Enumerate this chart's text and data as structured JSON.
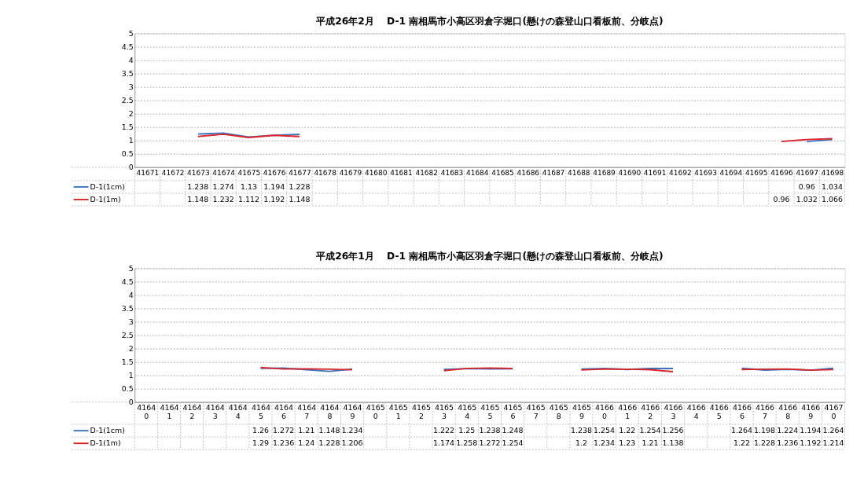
{
  "chart_data": [
    {
      "type": "line",
      "title": "平成26年2月　 D-1 南相馬市小高区羽倉字堀口(懸けの森登山口看板前、分岐点)",
      "categories": [
        "41671",
        "41672",
        "41673",
        "41674",
        "41675",
        "41676",
        "41677",
        "41678",
        "41679",
        "41680",
        "41681",
        "41682",
        "41683",
        "41684",
        "41685",
        "41686",
        "41687",
        "41688",
        "41689",
        "41690",
        "41691",
        "41692",
        "41693",
        "41694",
        "41695",
        "41696",
        "41697",
        "41698"
      ],
      "series": [
        {
          "name": "D-1(1cm)",
          "color": "#3b72c0",
          "values": [
            null,
            null,
            1.238,
            1.274,
            1.13,
            1.194,
            1.228,
            null,
            null,
            null,
            null,
            null,
            null,
            null,
            null,
            null,
            null,
            null,
            null,
            null,
            null,
            null,
            null,
            null,
            null,
            null,
            0.96,
            1.034
          ]
        },
        {
          "name": "D-1(1m)",
          "color": "#d9262a",
          "values": [
            null,
            null,
            1.148,
            1.232,
            1.112,
            1.192,
            1.148,
            null,
            null,
            null,
            null,
            null,
            null,
            null,
            null,
            null,
            null,
            null,
            null,
            null,
            null,
            null,
            null,
            null,
            null,
            0.96,
            1.032,
            1.066
          ]
        }
      ],
      "ylim": [
        0,
        5
      ],
      "yticks": [
        0,
        0.5,
        1,
        1.5,
        2,
        2.5,
        3,
        3.5,
        4,
        4.5,
        5
      ],
      "grid": "y",
      "legend": "bottom",
      "data_labels": true,
      "marker": "none",
      "line_style": "solid"
    },
    {
      "type": "line",
      "title": "平成26年1月　 D-1 南相馬市小高区羽倉字堀口(懸けの森登山口看板前、分岐点)",
      "categories": [
        "41640",
        "41641",
        "41642",
        "41643",
        "41644",
        "41645",
        "41646",
        "41647",
        "41648",
        "41649",
        "41650",
        "41651",
        "41652",
        "41653",
        "41654",
        "41655",
        "41656",
        "41657",
        "41658",
        "41659",
        "41660",
        "41661",
        "41662",
        "41663",
        "41664",
        "41665",
        "41666",
        "41667",
        "41668",
        "41669",
        "41670"
      ],
      "series": [
        {
          "name": "D-1(1cm)",
          "color": "#3b72c0",
          "values": [
            null,
            null,
            null,
            null,
            null,
            1.26,
            1.272,
            1.21,
            1.148,
            1.234,
            null,
            null,
            null,
            1.222,
            1.25,
            1.238,
            1.248,
            null,
            null,
            1.238,
            1.254,
            1.22,
            1.254,
            1.256,
            null,
            null,
            1.264,
            1.198,
            1.224,
            1.194,
            1.264
          ]
        },
        {
          "name": "D-1(1m)",
          "color": "#d9262a",
          "values": [
            null,
            null,
            null,
            null,
            null,
            1.29,
            1.236,
            1.24,
            1.228,
            1.206,
            null,
            null,
            null,
            1.174,
            1.258,
            1.272,
            1.254,
            null,
            null,
            1.2,
            1.234,
            1.23,
            1.21,
            1.138,
            null,
            null,
            1.22,
            1.228,
            1.236,
            1.192,
            1.214
          ]
        }
      ],
      "ylim": [
        0,
        5
      ],
      "yticks": [
        0,
        0.5,
        1,
        1.5,
        2,
        2.5,
        3,
        3.5,
        4,
        4.5,
        5
      ],
      "grid": "y",
      "legend": "bottom",
      "data_labels": true,
      "marker": "none",
      "line_style": "solid"
    }
  ]
}
